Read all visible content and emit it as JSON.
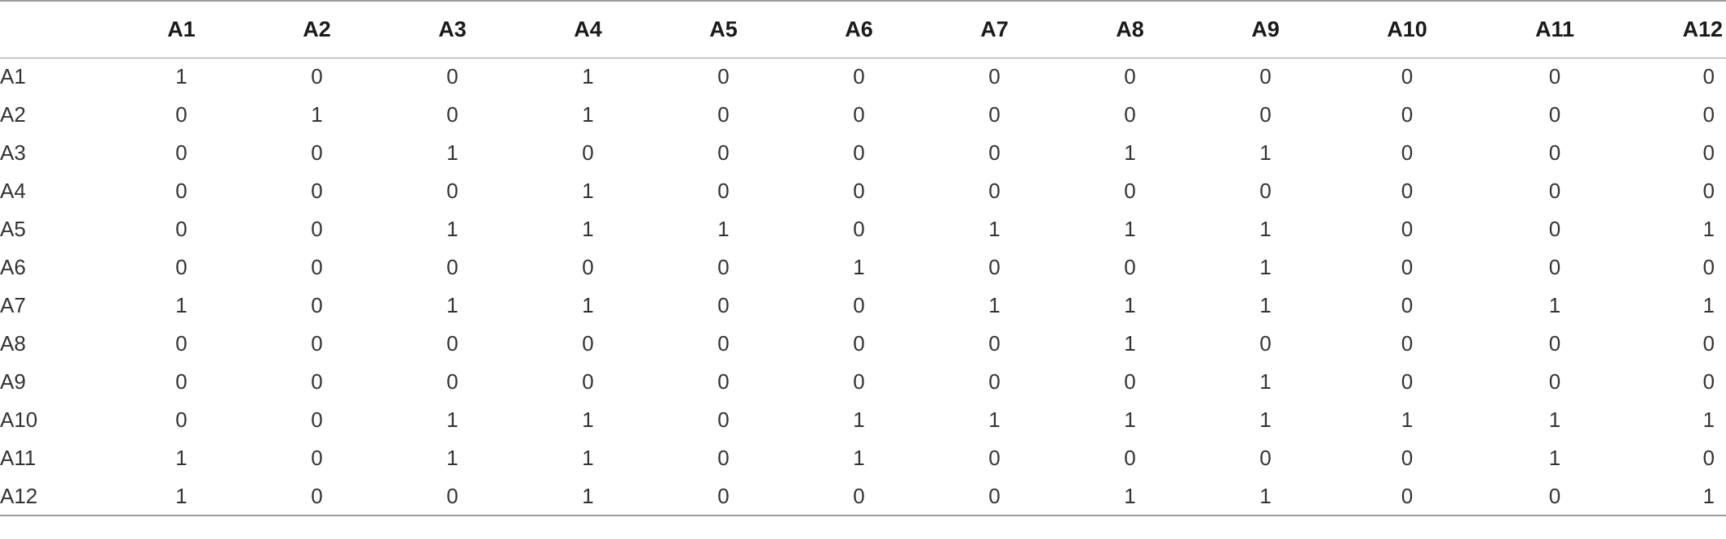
{
  "table": {
    "column_headers": [
      "",
      "A1",
      "A2",
      "A3",
      "A4",
      "A5",
      "A6",
      "A7",
      "A8",
      "A9",
      "A10",
      "A11",
      "A12"
    ],
    "rows": [
      {
        "label": "A1",
        "values": [
          "1",
          "0",
          "0",
          "1",
          "0",
          "0",
          "0",
          "0",
          "0",
          "0",
          "0",
          "0"
        ]
      },
      {
        "label": "A2",
        "values": [
          "0",
          "1",
          "0",
          "1",
          "0",
          "0",
          "0",
          "0",
          "0",
          "0",
          "0",
          "0"
        ]
      },
      {
        "label": "A3",
        "values": [
          "0",
          "0",
          "1",
          "0",
          "0",
          "0",
          "0",
          "1",
          "1",
          "0",
          "0",
          "0"
        ]
      },
      {
        "label": "A4",
        "values": [
          "0",
          "0",
          "0",
          "1",
          "0",
          "0",
          "0",
          "0",
          "0",
          "0",
          "0",
          "0"
        ]
      },
      {
        "label": "A5",
        "values": [
          "0",
          "0",
          "1",
          "1",
          "1",
          "0",
          "1",
          "1",
          "1",
          "0",
          "0",
          "1"
        ]
      },
      {
        "label": "A6",
        "values": [
          "0",
          "0",
          "0",
          "0",
          "0",
          "1",
          "0",
          "0",
          "1",
          "0",
          "0",
          "0"
        ]
      },
      {
        "label": "A7",
        "values": [
          "1",
          "0",
          "1",
          "1",
          "0",
          "0",
          "1",
          "1",
          "1",
          "0",
          "1",
          "1"
        ]
      },
      {
        "label": "A8",
        "values": [
          "0",
          "0",
          "0",
          "0",
          "0",
          "0",
          "0",
          "1",
          "0",
          "0",
          "0",
          "0"
        ]
      },
      {
        "label": "A9",
        "values": [
          "0",
          "0",
          "0",
          "0",
          "0",
          "0",
          "0",
          "0",
          "1",
          "0",
          "0",
          "0"
        ]
      },
      {
        "label": "A10",
        "values": [
          "0",
          "0",
          "1",
          "1",
          "0",
          "1",
          "1",
          "1",
          "1",
          "1",
          "1",
          "1"
        ]
      },
      {
        "label": "A11",
        "values": [
          "1",
          "0",
          "1",
          "1",
          "0",
          "1",
          "0",
          "0",
          "0",
          "0",
          "1",
          "0"
        ]
      },
      {
        "label": "A12",
        "values": [
          "1",
          "0",
          "0",
          "1",
          "0",
          "0",
          "0",
          "1",
          "1",
          "0",
          "0",
          "1"
        ]
      }
    ]
  }
}
